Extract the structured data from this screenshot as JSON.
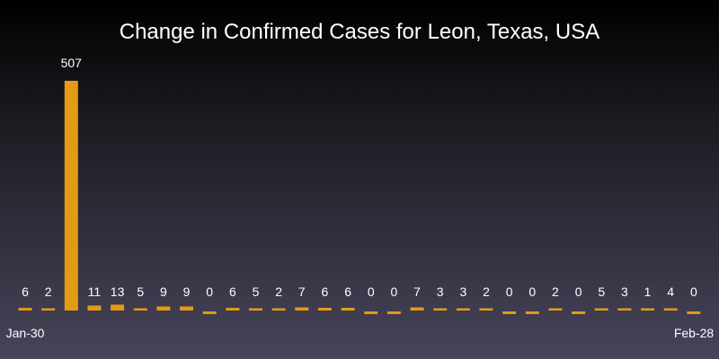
{
  "chart_data": {
    "type": "bar",
    "title": "Change in Confirmed Cases for Leon, Texas, USA",
    "xlabel": "",
    "ylabel": "",
    "categories": [
      "Jan-30",
      "",
      "",
      "",
      "",
      "",
      "",
      "",
      "",
      "",
      "",
      "",
      "",
      "",
      "",
      "",
      "",
      "",
      "",
      "",
      "",
      "",
      "",
      "",
      "",
      "",
      "",
      "",
      "",
      "Feb-28"
    ],
    "values": [
      6,
      2,
      507,
      11,
      13,
      5,
      9,
      9,
      0,
      6,
      5,
      2,
      7,
      6,
      6,
      0,
      0,
      7,
      3,
      3,
      2,
      0,
      0,
      2,
      0,
      5,
      3,
      1,
      4,
      0
    ],
    "x_tick_labels": [
      "Jan-30",
      "Feb-28"
    ],
    "bar_color": "#e39a14",
    "grid": false,
    "legend": "none"
  }
}
